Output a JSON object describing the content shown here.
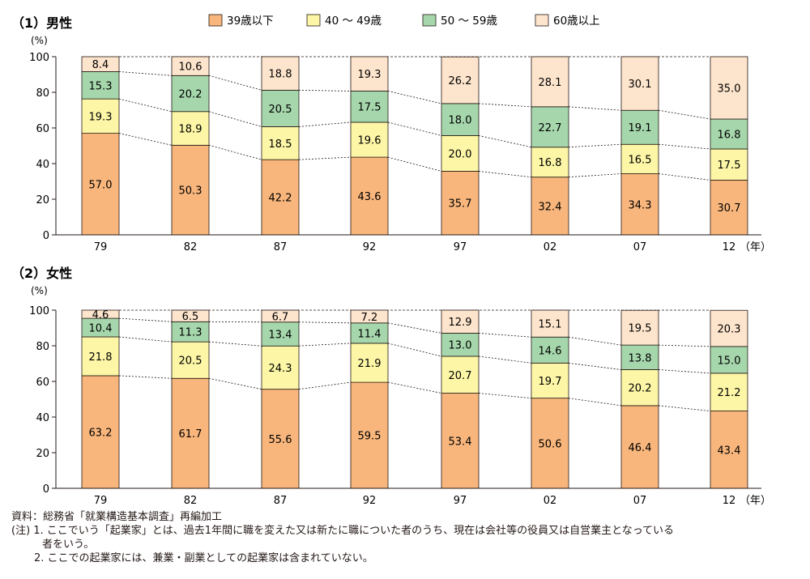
{
  "legend": [
    {
      "label": "39歳以下",
      "color": "#f8b67c"
    },
    {
      "label": "40 ～ 49歳",
      "color": "#fcf6a6"
    },
    {
      "label": "50 ～ 59歳",
      "color": "#a6d7ac"
    },
    {
      "label": "60歳以上",
      "color": "#fde4cc"
    }
  ],
  "chart_data": [
    {
      "type": "bar",
      "stacked": true,
      "title": "（1）男性",
      "ylabel": "(%)",
      "xunit": "（年）",
      "ylim": [
        0,
        100
      ],
      "yticks": [
        0,
        20,
        40,
        60,
        80,
        100
      ],
      "categories": [
        "79",
        "82",
        "87",
        "92",
        "97",
        "02",
        "07",
        "12"
      ],
      "series": [
        {
          "name": "39歳以下",
          "values": [
            57.0,
            50.3,
            42.2,
            43.6,
            35.7,
            32.4,
            34.3,
            30.7
          ]
        },
        {
          "name": "40 ～ 49歳",
          "values": [
            19.3,
            18.9,
            18.5,
            19.6,
            20.0,
            16.8,
            16.5,
            17.5
          ]
        },
        {
          "name": "50 ～ 59歳",
          "values": [
            15.3,
            20.2,
            20.5,
            17.5,
            18.0,
            22.7,
            19.1,
            16.8
          ]
        },
        {
          "name": "60歳以上",
          "values": [
            8.4,
            10.6,
            18.8,
            19.3,
            26.2,
            28.1,
            30.1,
            35.0
          ]
        }
      ],
      "labels": [
        [
          "57.0",
          "50.3",
          "42.2",
          "43.6",
          "35.7",
          "32.4",
          "34.3",
          "30.7"
        ],
        [
          "19.3",
          "18.9",
          "18.5",
          "19.6",
          "20.0",
          "16.8",
          "16.5",
          "17.5"
        ],
        [
          "15.3",
          "20.2",
          "20.5",
          "17.5",
          "18.0",
          "22.7",
          "19.1",
          "16.8"
        ],
        [
          "8.4",
          "10.6",
          "18.8",
          "19.3",
          "26.2",
          "28.1",
          "30.1",
          "35.0"
        ]
      ]
    },
    {
      "type": "bar",
      "stacked": true,
      "title": "（2）女性",
      "ylabel": "(%)",
      "xunit": "（年）",
      "ylim": [
        0,
        100
      ],
      "yticks": [
        0,
        20,
        40,
        60,
        80,
        100
      ],
      "categories": [
        "79",
        "82",
        "87",
        "92",
        "97",
        "02",
        "07",
        "12"
      ],
      "series": [
        {
          "name": "39歳以下",
          "values": [
            63.2,
            61.7,
            55.6,
            59.5,
            53.4,
            50.6,
            46.4,
            43.4
          ]
        },
        {
          "name": "40 ～ 49歳",
          "values": [
            21.8,
            20.5,
            24.3,
            21.9,
            20.7,
            19.7,
            20.2,
            21.2
          ]
        },
        {
          "name": "50 ～ 59歳",
          "values": [
            10.4,
            11.3,
            13.4,
            11.4,
            13.0,
            14.6,
            13.8,
            15.0
          ]
        },
        {
          "name": "60歳以上",
          "values": [
            4.6,
            6.5,
            6.7,
            7.2,
            12.9,
            15.1,
            19.5,
            20.3
          ]
        }
      ],
      "labels": [
        [
          "63.2",
          "61.7",
          "55.6",
          "59.5",
          "53.4",
          "50.6",
          "46.4",
          "43.4"
        ],
        [
          "21.8",
          "20.5",
          "24.3",
          "21.9",
          "20.7",
          "19.7",
          "20.2",
          "21.2"
        ],
        [
          "10.4",
          "11.3",
          "13.4",
          "11.4",
          "13.0",
          "14.6",
          "13.8",
          "15.0"
        ],
        [
          "4.6",
          "6.5",
          "6.7",
          "7.2",
          "12.9",
          "15.1",
          "19.5",
          "20.3"
        ]
      ]
    }
  ],
  "notes": {
    "source": "資料：総務省「就業構造基本調査」再編加工",
    "note1": "(注) 1. ここでいう「起業家」とは、過去1年間に職を変えた又は新たに職についた者のうち、現在は会社等の役員又は自営業主となっている",
    "note1_cont": "者をいう。",
    "note2": "2. ここでの起業家には、兼業・副業としての起業家は含まれていない。"
  }
}
